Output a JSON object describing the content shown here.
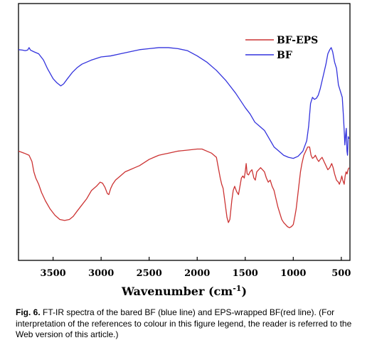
{
  "chart_data": {
    "type": "line",
    "title": "",
    "xlabel_main": "Wavenumber (cm",
    "xlabel_sup": "-1",
    "xlabel_end": ")",
    "ylabel": "",
    "xlim": [
      3860,
      410
    ],
    "ylim": [
      0,
      100
    ],
    "x_reversed": true,
    "grid": false,
    "y_ticks_shown": false,
    "legend_position": "top-right",
    "xticks": [
      3500,
      3000,
      2500,
      2000,
      1500,
      1000,
      500
    ],
    "xtick_labels": [
      "3500",
      "3000",
      "2500",
      "2000",
      "1500",
      "1000",
      "500"
    ],
    "series": [
      {
        "name": "BF",
        "color": "#3333dd",
        "points": [
          [
            3860,
            87
          ],
          [
            3820,
            86.8
          ],
          [
            3790,
            86.5
          ],
          [
            3765,
            86.8
          ],
          [
            3750,
            88
          ],
          [
            3735,
            86.8
          ],
          [
            3700,
            86
          ],
          [
            3650,
            85
          ],
          [
            3600,
            82
          ],
          [
            3560,
            78
          ],
          [
            3500,
            73
          ],
          [
            3460,
            71
          ],
          [
            3420,
            69.5
          ],
          [
            3390,
            70.5
          ],
          [
            3350,
            73
          ],
          [
            3300,
            76
          ],
          [
            3250,
            78.3
          ],
          [
            3200,
            80
          ],
          [
            3100,
            82
          ],
          [
            3000,
            83.5
          ],
          [
            2900,
            84
          ],
          [
            2800,
            85
          ],
          [
            2700,
            86
          ],
          [
            2600,
            87
          ],
          [
            2500,
            87.5
          ],
          [
            2400,
            88
          ],
          [
            2300,
            88
          ],
          [
            2200,
            87.5
          ],
          [
            2100,
            86.5
          ],
          [
            2000,
            84
          ],
          [
            1900,
            81
          ],
          [
            1800,
            77
          ],
          [
            1700,
            72
          ],
          [
            1600,
            66
          ],
          [
            1500,
            59
          ],
          [
            1450,
            56
          ],
          [
            1400,
            52
          ],
          [
            1350,
            50
          ],
          [
            1300,
            48
          ],
          [
            1250,
            44
          ],
          [
            1200,
            40
          ],
          [
            1150,
            38
          ],
          [
            1100,
            36
          ],
          [
            1050,
            35
          ],
          [
            1000,
            34.5
          ],
          [
            950,
            35.5
          ],
          [
            900,
            38
          ],
          [
            860,
            43
          ],
          [
            840,
            50
          ],
          [
            820,
            61
          ],
          [
            800,
            64
          ],
          [
            780,
            63
          ],
          [
            760,
            63.5
          ],
          [
            740,
            65
          ],
          [
            720,
            68
          ],
          [
            700,
            72
          ],
          [
            680,
            76
          ],
          [
            660,
            80
          ],
          [
            640,
            85
          ],
          [
            620,
            87
          ],
          [
            605,
            88
          ],
          [
            590,
            86
          ],
          [
            570,
            81
          ],
          [
            550,
            78
          ],
          [
            530,
            70
          ],
          [
            510,
            67
          ],
          [
            490,
            64
          ],
          [
            478,
            55
          ],
          [
            470,
            48
          ],
          [
            463,
            41
          ],
          [
            455,
            46
          ],
          [
            448,
            49
          ],
          [
            441,
            38
          ],
          [
            435,
            36
          ],
          [
            428,
            45
          ],
          [
            420,
            44
          ]
        ]
      },
      {
        "name": "BF-EPS",
        "color": "#cc3333",
        "points": [
          [
            3860,
            38
          ],
          [
            3800,
            37
          ],
          [
            3750,
            36
          ],
          [
            3720,
            33
          ],
          [
            3700,
            28
          ],
          [
            3680,
            25
          ],
          [
            3650,
            22
          ],
          [
            3620,
            18
          ],
          [
            3580,
            14
          ],
          [
            3530,
            10
          ],
          [
            3480,
            7
          ],
          [
            3430,
            5
          ],
          [
            3380,
            4.5
          ],
          [
            3330,
            5
          ],
          [
            3290,
            6.5
          ],
          [
            3250,
            9
          ],
          [
            3200,
            12
          ],
          [
            3150,
            15
          ],
          [
            3100,
            19
          ],
          [
            3050,
            21
          ],
          [
            3010,
            23
          ],
          [
            2985,
            22.5
          ],
          [
            2960,
            20.5
          ],
          [
            2935,
            17.5
          ],
          [
            2920,
            17
          ],
          [
            2900,
            20
          ],
          [
            2880,
            22
          ],
          [
            2850,
            24
          ],
          [
            2800,
            26
          ],
          [
            2750,
            28
          ],
          [
            2700,
            29
          ],
          [
            2650,
            30
          ],
          [
            2600,
            31
          ],
          [
            2550,
            32.5
          ],
          [
            2500,
            34
          ],
          [
            2450,
            35
          ],
          [
            2400,
            36
          ],
          [
            2350,
            36.5
          ],
          [
            2300,
            37
          ],
          [
            2250,
            37.5
          ],
          [
            2200,
            38
          ],
          [
            2100,
            38.5
          ],
          [
            2000,
            39
          ],
          [
            1950,
            39
          ],
          [
            1900,
            38
          ],
          [
            1850,
            37
          ],
          [
            1800,
            35
          ],
          [
            1780,
            30
          ],
          [
            1760,
            25
          ],
          [
            1745,
            22
          ],
          [
            1730,
            20
          ],
          [
            1710,
            13
          ],
          [
            1690,
            6
          ],
          [
            1675,
            3.5
          ],
          [
            1660,
            5
          ],
          [
            1640,
            14
          ],
          [
            1625,
            19
          ],
          [
            1610,
            21
          ],
          [
            1590,
            18.5
          ],
          [
            1570,
            17
          ],
          [
            1555,
            21
          ],
          [
            1540,
            25
          ],
          [
            1525,
            26
          ],
          [
            1510,
            25
          ],
          [
            1500,
            28
          ],
          [
            1490,
            32
          ],
          [
            1480,
            27
          ],
          [
            1465,
            26.5
          ],
          [
            1450,
            28
          ],
          [
            1430,
            29
          ],
          [
            1410,
            25
          ],
          [
            1395,
            24
          ],
          [
            1380,
            28
          ],
          [
            1360,
            29
          ],
          [
            1340,
            30
          ],
          [
            1320,
            29
          ],
          [
            1300,
            28
          ],
          [
            1280,
            25
          ],
          [
            1260,
            23
          ],
          [
            1240,
            24
          ],
          [
            1220,
            21
          ],
          [
            1200,
            19
          ],
          [
            1180,
            15
          ],
          [
            1160,
            11
          ],
          [
            1140,
            8
          ],
          [
            1120,
            5
          ],
          [
            1100,
            3.5
          ],
          [
            1080,
            2.5
          ],
          [
            1060,
            1.5
          ],
          [
            1040,
            1
          ],
          [
            1020,
            1.5
          ],
          [
            1000,
            2.5
          ],
          [
            985,
            6
          ],
          [
            970,
            10
          ],
          [
            955,
            16
          ],
          [
            940,
            22
          ],
          [
            925,
            28
          ],
          [
            910,
            32
          ],
          [
            890,
            36
          ],
          [
            870,
            38
          ],
          [
            850,
            40
          ],
          [
            830,
            40
          ],
          [
            815,
            36
          ],
          [
            800,
            34.5
          ],
          [
            785,
            35
          ],
          [
            770,
            36
          ],
          [
            750,
            34
          ],
          [
            735,
            33
          ],
          [
            720,
            34
          ],
          [
            700,
            35
          ],
          [
            680,
            33
          ],
          [
            660,
            31
          ],
          [
            640,
            29
          ],
          [
            620,
            30
          ],
          [
            600,
            32
          ],
          [
            585,
            30
          ],
          [
            570,
            27
          ],
          [
            550,
            24
          ],
          [
            530,
            23
          ],
          [
            520,
            22
          ],
          [
            505,
            24
          ],
          [
            495,
            26
          ],
          [
            485,
            24
          ],
          [
            470,
            22
          ],
          [
            460,
            26
          ],
          [
            450,
            28
          ],
          [
            440,
            27
          ],
          [
            430,
            29
          ],
          [
            420,
            30
          ]
        ]
      }
    ]
  },
  "caption": {
    "label": "Fig. 6.",
    "text": " FT-IR spectra of the bared BF (blue line) and EPS-wrapped BF(red line). (For interpretation of the references to colour in this figure legend, the reader is referred to the Web version of this article.)"
  }
}
